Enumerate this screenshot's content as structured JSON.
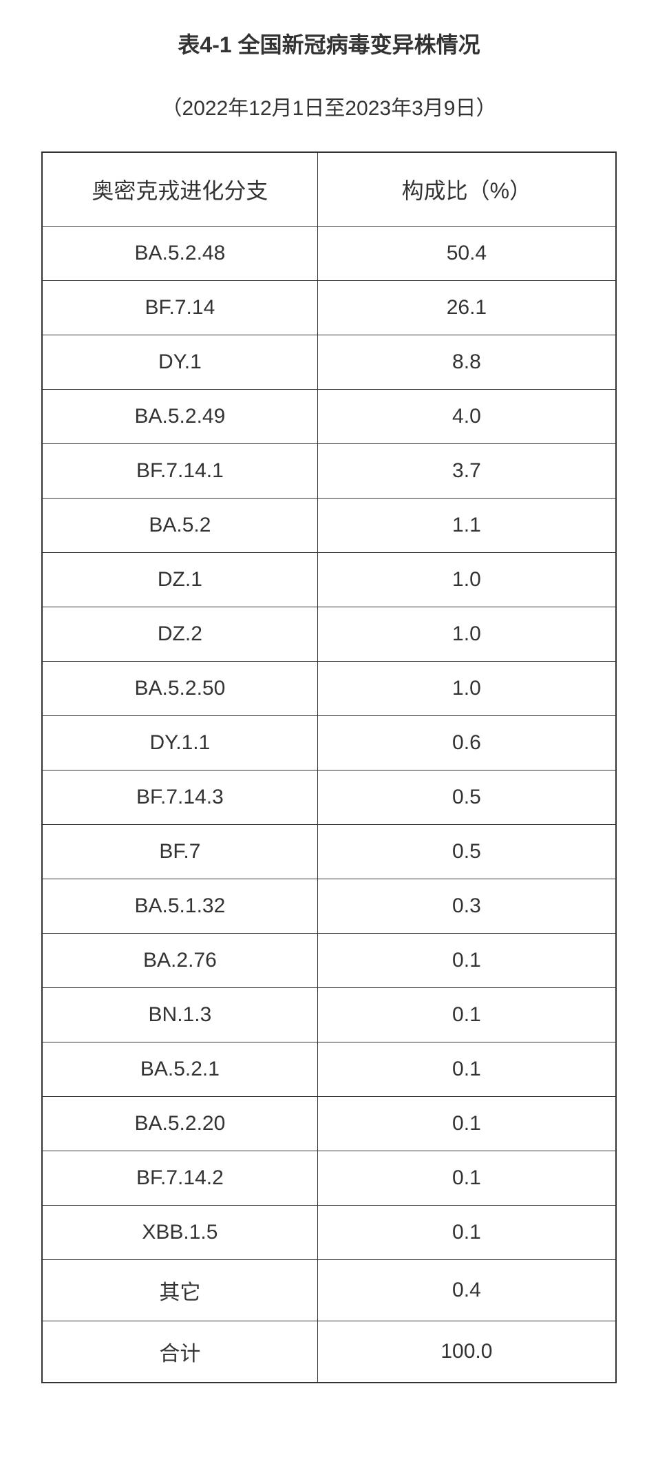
{
  "title": "表4-1 全国新冠病毒变异株情况",
  "subtitle": "（2022年12月1日至2023年3月9日）",
  "table": {
    "columns": [
      "奥密克戎进化分支",
      "构成比（%）"
    ],
    "rows": [
      [
        "BA.5.2.48",
        "50.4"
      ],
      [
        "BF.7.14",
        "26.1"
      ],
      [
        "DY.1",
        "8.8"
      ],
      [
        "BA.5.2.49",
        "4.0"
      ],
      [
        "BF.7.14.1",
        "3.7"
      ],
      [
        "BA.5.2",
        "1.1"
      ],
      [
        "DZ.1",
        "1.0"
      ],
      [
        "DZ.2",
        "1.0"
      ],
      [
        "BA.5.2.50",
        "1.0"
      ],
      [
        "DY.1.1",
        "0.6"
      ],
      [
        "BF.7.14.3",
        "0.5"
      ],
      [
        "BF.7",
        "0.5"
      ],
      [
        "BA.5.1.32",
        "0.3"
      ],
      [
        "BA.2.76",
        "0.1"
      ],
      [
        "BN.1.3",
        "0.1"
      ],
      [
        "BA.5.2.1",
        "0.1"
      ],
      [
        "BA.5.2.20",
        "0.1"
      ],
      [
        "BF.7.14.2",
        "0.1"
      ],
      [
        "XBB.1.5",
        "0.1"
      ],
      [
        "其它",
        "0.4"
      ],
      [
        "合计",
        "100.0"
      ]
    ]
  },
  "styling": {
    "background_color": "#ffffff",
    "text_color": "#333333",
    "border_color": "#333333",
    "title_fontsize": 32,
    "subtitle_fontsize": 30,
    "header_fontsize": 32,
    "cell_fontsize": 30,
    "title_fontweight": "bold",
    "column_widths_percent": [
      48,
      52
    ]
  }
}
